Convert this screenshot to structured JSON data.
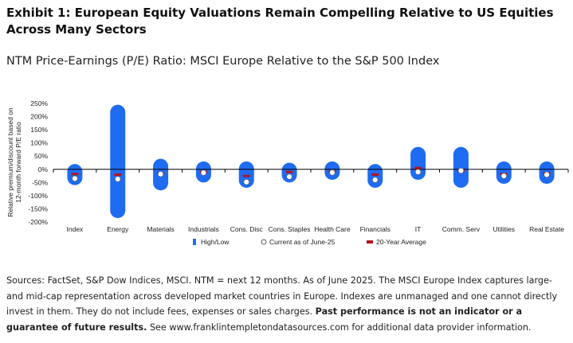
{
  "exhibit_title": "Exhibit 1: European Equity Valuations Remain Compelling Relative to US Equities Across Many Sectors",
  "subtitle": "NTM Price-Earnings (P/E) Ratio: MSCI Europe Relative to the S&P 500 Index",
  "source": {
    "text_before": "Sources: FactSet, S&P Dow Indices, MSCI. NTM = next 12 months. As of June 2025. The MSCI Europe Index captures large- and mid-cap representation across developed market countries in Europe. Indexes are unmanaged and one cannot directly invest in them. They do not include fees, expenses or sales charges. ",
    "bold": "Past performance is not an indicator or a guarantee of future results.",
    "text_after": " See www.franklintempletondatasources.com for additional data provider information."
  },
  "colors": {
    "range_bar": "#1f6cf2",
    "average_marker": "#b4141e",
    "current_marker_fill": "#ffffff",
    "axis": "#000000",
    "text": "#222222"
  },
  "chart_data": {
    "type": "range",
    "ylabel": "Relative premium/discount based on 12-month forward P/E ratio",
    "ylim": [
      -200,
      250
    ],
    "yticks": [
      250,
      200,
      150,
      100,
      50,
      0,
      -50,
      -100,
      -150,
      -200
    ],
    "ytick_labels": [
      "250%",
      "200%",
      "150%",
      "100%",
      "50%",
      "0%",
      "-50%",
      "-100%",
      "-150%",
      "-200%"
    ],
    "categories": [
      "Index",
      "Energy",
      "Materials",
      "Industrials",
      "Cons. Disc",
      "Cons. Staples",
      "Health Care",
      "Financials",
      "IT",
      "Comm. Serv",
      "Utilities",
      "Real Estate"
    ],
    "series": [
      {
        "name": "High/Low",
        "high": [
          20,
          245,
          40,
          30,
          30,
          25,
          30,
          20,
          85,
          85,
          30,
          30
        ],
        "low": [
          -60,
          -185,
          -80,
          -50,
          -70,
          -50,
          -40,
          -70,
          -40,
          -70,
          -55,
          -55
        ]
      },
      {
        "name": "Current as of June-25",
        "values": [
          -35,
          -37,
          -18,
          -13,
          -48,
          -28,
          -12,
          -40,
          -10,
          -5,
          -25,
          -20
        ]
      },
      {
        "name": "20-Year Average",
        "values": [
          -18,
          -20,
          -15,
          -10,
          -25,
          -10,
          -8,
          -20,
          5,
          -5,
          -18,
          -15
        ]
      }
    ],
    "legend": [
      "High/Low",
      "Current as of June-25",
      "20-Year Average"
    ],
    "legend_position": "bottom",
    "grid": false
  }
}
